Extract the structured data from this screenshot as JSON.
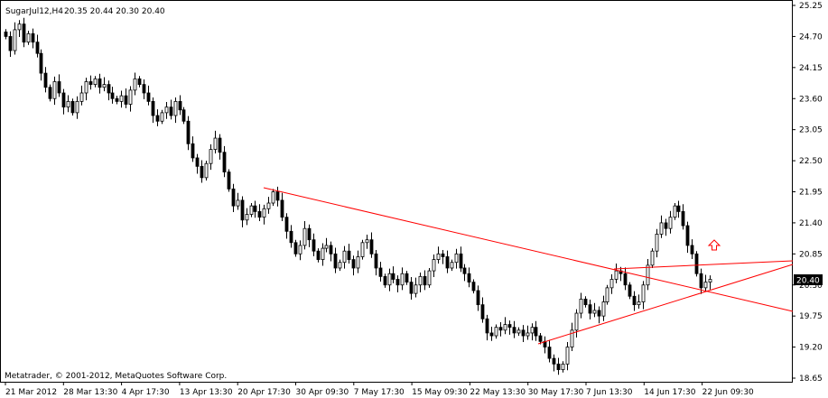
{
  "header": {
    "symbol": "SugarJul12,H4",
    "ohlc": "20.35 20.44 20.30 20.40"
  },
  "footer": {
    "copyright": "Metatrader, © 2001-2012, MetaQuotes Software Corp."
  },
  "chart_data": {
    "type": "candlestick",
    "title": "SugarJul12,H4",
    "ylim": [
      18.6,
      25.25
    ],
    "y_ticks": [
      25.25,
      24.7,
      24.15,
      23.6,
      23.05,
      22.5,
      21.95,
      21.4,
      20.85,
      20.3,
      19.75,
      19.2,
      18.65
    ],
    "x_tick_labels": [
      "21 Mar 2012",
      "28 Mar 13:30",
      "4 Apr 17:30",
      "13 Apr 13:30",
      "20 Apr 17:30",
      "30 Apr 09:30",
      "7 May 17:30",
      "15 May 09:30",
      "22 May 13:30",
      "30 May 17:30",
      "7 Jun 13:30",
      "14 Jun 17:30",
      "22 Jun 09:30"
    ],
    "current_price": 20.4,
    "grid": false,
    "colors": {
      "background": "#ffffff",
      "bull_body": "#ffffff",
      "bear_body": "#000000",
      "wick": "#000000",
      "trendline": "#ff0000",
      "price_tag_bg": "#000000",
      "price_tag_text": "#ffffff",
      "arrow": "#ff0000"
    },
    "closes": [
      24.7,
      24.45,
      24.82,
      24.92,
      24.6,
      24.75,
      24.6,
      24.4,
      24.05,
      23.8,
      23.6,
      23.9,
      23.7,
      23.45,
      23.55,
      23.35,
      23.55,
      23.7,
      23.9,
      23.85,
      23.95,
      23.8,
      23.85,
      23.7,
      23.6,
      23.55,
      23.65,
      23.5,
      23.75,
      23.95,
      23.85,
      23.7,
      23.55,
      23.3,
      23.2,
      23.35,
      23.45,
      23.3,
      23.55,
      23.4,
      23.2,
      22.8,
      22.55,
      22.4,
      22.2,
      22.45,
      22.7,
      22.9,
      22.65,
      22.3,
      22.0,
      21.7,
      21.8,
      21.45,
      21.55,
      21.7,
      21.6,
      21.5,
      21.65,
      21.75,
      21.95,
      21.8,
      21.5,
      21.25,
      21.05,
      20.85,
      21.0,
      21.3,
      21.1,
      20.9,
      20.75,
      20.95,
      21.0,
      20.85,
      20.6,
      20.7,
      20.9,
      20.75,
      20.6,
      20.8,
      21.05,
      21.1,
      20.85,
      20.6,
      20.45,
      20.3,
      20.5,
      20.4,
      20.3,
      20.5,
      20.35,
      20.15,
      20.3,
      20.45,
      20.3,
      20.55,
      20.75,
      20.85,
      20.8,
      20.6,
      20.7,
      20.85,
      20.6,
      20.5,
      20.35,
      20.2,
      19.95,
      19.7,
      19.45,
      19.4,
      19.55,
      19.5,
      19.6,
      19.55,
      19.45,
      19.5,
      19.4,
      19.45,
      19.55,
      19.4,
      19.3,
      19.2,
      19.0,
      18.9,
      18.8,
      18.9,
      19.2,
      19.5,
      19.8,
      20.05,
      19.95,
      19.8,
      19.85,
      19.75,
      20.0,
      20.25,
      20.4,
      20.55,
      20.5,
      20.3,
      20.1,
      19.95,
      20.0,
      20.3,
      20.65,
      20.9,
      21.2,
      21.4,
      21.3,
      21.5,
      21.7,
      21.6,
      21.35,
      21.0,
      20.85,
      20.5,
      20.25,
      20.35,
      20.4
    ]
  }
}
